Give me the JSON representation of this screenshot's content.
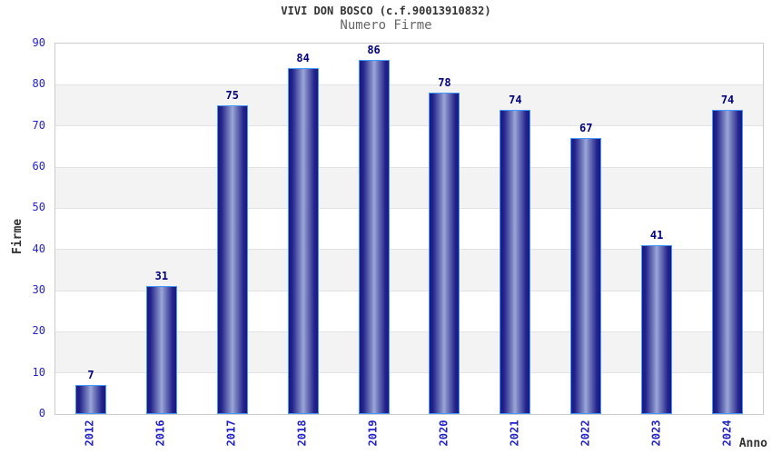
{
  "chart_data": {
    "type": "bar",
    "title": "VIVI DON BOSCO (c.f.90013910832)",
    "subtitle": "Numero Firme",
    "xlabel": "Anno",
    "ylabel": "Firme",
    "categories": [
      "2012",
      "2016",
      "2017",
      "2018",
      "2019",
      "2020",
      "2021",
      "2022",
      "2023",
      "2024"
    ],
    "values": [
      7,
      31,
      75,
      84,
      86,
      78,
      74,
      67,
      41,
      74
    ],
    "ylim": [
      0,
      90
    ],
    "ytick_step": 10,
    "yticks": [
      0,
      10,
      20,
      30,
      40,
      50,
      60,
      70,
      80,
      90
    ],
    "grid": "horizontal-bands",
    "legend": "none",
    "bar_value_labels_shown": true,
    "colors": {
      "title": "#333333",
      "subtitle": "#666666",
      "axis_tick_label": "#2222cc",
      "bar_value_label": "#000080",
      "bar_border": "#4499ff",
      "bar_edge_dark": "#191980",
      "bar_mid": "#23238c",
      "bar_highlight": "#9ca7da",
      "band_gray": "#f3f3f3",
      "band_white": "#ffffff",
      "gridline": "#e2e2e2",
      "plot_border": "#cccccc",
      "background": "#ffffff"
    }
  }
}
